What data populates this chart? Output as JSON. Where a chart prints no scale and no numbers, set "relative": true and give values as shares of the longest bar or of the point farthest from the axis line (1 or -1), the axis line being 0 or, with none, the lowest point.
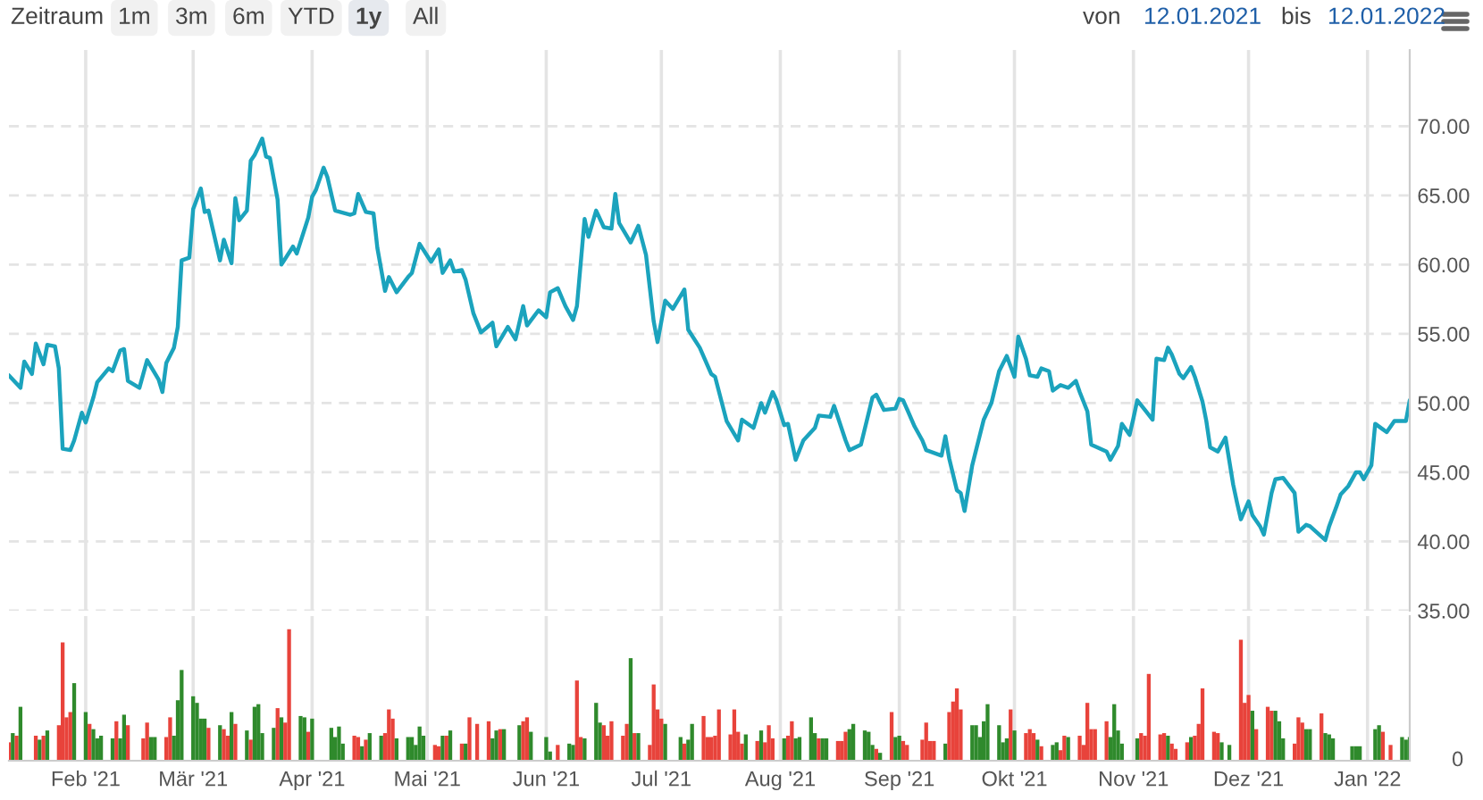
{
  "chart_data": [
    {
      "type": "line",
      "color": "#1ba3bd",
      "grid": true,
      "tick_labels": "y",
      "annotations": [
        "Zeitraum",
        "1m",
        "3m",
        "6m",
        "YTD",
        "1y",
        "All",
        "von",
        "12.01.2021",
        "bis",
        "12.01.2022"
      ],
      "xlim": [
        "2021-01-12",
        "2022-01-12"
      ],
      "xticks": [
        {
          "value": "2021-02-01",
          "label": null
        },
        {
          "value": "2021-03-01",
          "label": null
        },
        {
          "value": "2021-04-01",
          "label": null
        },
        {
          "value": "2021-05-01",
          "label": null
        },
        {
          "value": "2021-06-01",
          "label": null
        },
        {
          "value": "2021-07-01",
          "label": null
        },
        {
          "value": "2021-08-01",
          "label": null
        },
        {
          "value": "2021-09-01",
          "label": null
        },
        {
          "value": "2021-10-01",
          "label": null
        },
        {
          "value": "2021-11-01",
          "label": null
        },
        {
          "value": "2021-12-01",
          "label": null
        },
        {
          "value": "2022-01-01",
          "label": null
        }
      ],
      "ylim": [
        35,
        75.5
      ],
      "yticks": [
        {
          "value": 35,
          "label": "35.00"
        },
        {
          "value": 40,
          "label": "40.00"
        },
        {
          "value": 45,
          "label": "45.00"
        },
        {
          "value": 50,
          "label": "50.00"
        },
        {
          "value": 55,
          "label": "55.00"
        },
        {
          "value": 60,
          "label": "60.00"
        },
        {
          "value": 65,
          "label": "65.00"
        },
        {
          "value": 70,
          "label": "70.00"
        }
      ],
      "x": [
        "2021-01-12",
        "2021-01-15",
        "2021-01-16",
        "2021-01-18",
        "2021-01-19",
        "2021-01-21",
        "2021-01-22",
        "2021-01-24",
        "2021-01-25",
        "2021-01-26",
        "2021-01-28",
        "2021-01-29",
        "2021-01-31",
        "2021-02-01",
        "2021-02-03",
        "2021-02-04",
        "2021-02-07",
        "2021-02-08",
        "2021-02-10",
        "2021-02-11",
        "2021-02-12",
        "2021-02-15",
        "2021-02-17",
        "2021-02-20",
        "2021-02-21",
        "2021-02-22",
        "2021-02-24",
        "2021-02-25",
        "2021-02-26",
        "2021-02-28",
        "2021-03-01",
        "2021-03-03",
        "2021-03-04",
        "2021-03-05",
        "2021-03-08",
        "2021-03-09",
        "2021-03-11",
        "2021-03-12",
        "2021-03-13",
        "2021-03-15",
        "2021-03-16",
        "2021-03-17",
        "2021-03-19",
        "2021-03-20",
        "2021-03-21",
        "2021-03-23",
        "2021-03-24",
        "2021-03-27",
        "2021-03-28",
        "2021-03-31",
        "2021-04-01",
        "2021-04-02",
        "2021-04-04",
        "2021-04-05",
        "2021-04-07",
        "2021-04-11",
        "2021-04-12",
        "2021-04-13",
        "2021-04-15",
        "2021-04-17",
        "2021-04-18",
        "2021-04-20",
        "2021-04-21",
        "2021-04-23",
        "2021-04-26",
        "2021-04-27",
        "2021-04-29",
        "2021-05-02",
        "2021-05-04",
        "2021-05-05",
        "2021-05-07",
        "2021-05-08",
        "2021-05-10",
        "2021-05-11",
        "2021-05-13",
        "2021-05-15",
        "2021-05-18",
        "2021-05-19",
        "2021-05-22",
        "2021-05-24",
        "2021-05-26",
        "2021-05-27",
        "2021-05-30",
        "2021-06-01",
        "2021-06-02",
        "2021-06-04",
        "2021-06-06",
        "2021-06-08",
        "2021-06-09",
        "2021-06-11",
        "2021-06-12",
        "2021-06-14",
        "2021-06-16",
        "2021-06-18",
        "2021-06-19",
        "2021-06-20",
        "2021-06-23",
        "2021-06-25",
        "2021-06-27",
        "2021-06-29",
        "2021-06-30",
        "2021-07-02",
        "2021-07-04",
        "2021-07-07",
        "2021-07-08",
        "2021-07-11",
        "2021-07-14",
        "2021-07-15",
        "2021-07-18",
        "2021-07-21",
        "2021-07-22",
        "2021-07-25",
        "2021-07-27",
        "2021-07-28",
        "2021-07-30",
        "2021-07-31",
        "2021-08-02",
        "2021-08-03",
        "2021-08-05",
        "2021-08-07",
        "2021-08-10",
        "2021-08-11",
        "2021-08-14",
        "2021-08-15",
        "2021-08-18",
        "2021-08-19",
        "2021-08-22",
        "2021-08-25",
        "2021-08-26",
        "2021-08-28",
        "2021-08-31",
        "2021-09-01",
        "2021-09-02",
        "2021-09-05",
        "2021-09-07",
        "2021-09-08",
        "2021-09-12",
        "2021-09-13",
        "2021-09-14",
        "2021-09-16",
        "2021-09-17",
        "2021-09-18",
        "2021-09-20",
        "2021-09-21",
        "2021-09-23",
        "2021-09-25",
        "2021-09-27",
        "2021-09-29",
        "2021-10-01",
        "2021-10-02",
        "2021-10-04",
        "2021-10-05",
        "2021-10-07",
        "2021-10-08",
        "2021-10-10",
        "2021-10-11",
        "2021-10-13",
        "2021-10-15",
        "2021-10-17",
        "2021-10-18",
        "2021-10-20",
        "2021-10-21",
        "2021-10-25",
        "2021-10-26",
        "2021-10-28",
        "2021-10-29",
        "2021-10-31",
        "2021-11-01",
        "2021-11-02",
        "2021-11-04",
        "2021-11-06",
        "2021-11-07",
        "2021-11-09",
        "2021-11-10",
        "2021-11-11",
        "2021-11-13",
        "2021-11-14",
        "2021-11-16",
        "2021-11-17",
        "2021-11-19",
        "2021-11-20",
        "2021-11-21",
        "2021-11-23",
        "2021-11-25",
        "2021-11-27",
        "2021-11-28",
        "2021-11-29",
        "2021-12-01",
        "2021-12-02",
        "2021-12-04",
        "2021-12-05",
        "2021-12-07",
        "2021-12-08",
        "2021-12-10",
        "2021-12-13",
        "2021-12-14",
        "2021-12-16",
        "2021-12-17",
        "2021-12-19",
        "2021-12-21",
        "2021-12-22",
        "2021-12-24",
        "2021-12-25",
        "2021-12-27",
        "2021-12-29",
        "2021-12-30",
        "2021-12-31",
        "2022-01-02",
        "2022-01-03",
        "2022-01-05",
        "2022-01-06",
        "2022-01-08",
        "2022-01-11",
        "2022-01-12"
      ],
      "values": [
        52.0,
        51.1,
        53.0,
        52.1,
        54.3,
        52.8,
        54.2,
        54.1,
        52.5,
        46.7,
        46.6,
        47.3,
        49.3,
        48.6,
        50.4,
        51.5,
        52.5,
        52.3,
        53.8,
        53.9,
        51.6,
        51.1,
        53.1,
        51.7,
        50.8,
        52.9,
        54.0,
        55.5,
        60.3,
        60.5,
        64.0,
        65.5,
        63.8,
        63.9,
        60.3,
        61.8,
        60.1,
        64.8,
        63.2,
        63.9,
        67.5,
        67.9,
        69.1,
        67.8,
        67.7,
        64.7,
        60.0,
        61.3,
        60.8,
        63.4,
        64.9,
        65.4,
        67.0,
        66.3,
        63.9,
        63.6,
        63.7,
        65.1,
        63.8,
        63.7,
        61.2,
        58.1,
        59.1,
        58.0,
        59.1,
        59.4,
        61.5,
        60.2,
        61.1,
        59.4,
        60.3,
        59.5,
        59.6,
        58.9,
        56.5,
        55.1,
        55.8,
        54.1,
        55.5,
        54.6,
        57.0,
        55.6,
        56.7,
        56.2,
        58.0,
        58.3,
        57.0,
        56.0,
        57.0,
        63.3,
        62.0,
        63.9,
        62.7,
        62.6,
        65.1,
        63.0,
        61.6,
        62.8,
        60.7,
        55.9,
        54.4,
        57.4,
        56.8,
        58.2,
        55.3,
        54.0,
        52.1,
        51.9,
        48.7,
        47.3,
        48.8,
        48.2,
        50.0,
        49.3,
        50.8,
        50.2,
        48.4,
        48.5,
        45.9,
        47.3,
        48.2,
        49.1,
        49.0,
        49.8,
        47.3,
        46.6,
        47.0,
        50.4,
        50.6,
        49.5,
        49.6,
        50.3,
        50.2,
        48.3,
        47.3,
        46.6,
        46.2,
        47.6,
        46.0,
        43.7,
        43.5,
        42.2,
        45.5,
        46.6,
        48.8,
        50.0,
        52.3,
        53.4,
        51.9,
        54.8,
        53.2,
        52.0,
        51.9,
        52.5,
        52.3,
        50.9,
        51.3,
        51.1,
        51.6,
        50.8,
        49.4,
        47.0,
        46.5,
        45.9,
        46.9,
        48.5,
        47.7,
        48.9,
        50.2,
        49.5,
        48.8,
        53.2,
        53.1,
        54.0,
        53.5,
        52.1,
        51.8,
        52.6,
        51.9,
        50.1,
        48.7,
        46.8,
        46.5,
        47.5,
        44.1,
        42.8,
        41.6,
        42.9,
        41.9,
        41.1,
        40.5,
        43.5,
        44.5,
        44.6,
        43.5,
        40.7,
        41.2,
        41.1,
        40.6,
        40.1,
        41.1,
        42.6,
        43.4,
        44.0,
        45.0,
        45.0,
        44.5,
        45.5,
        48.5,
        48.1,
        47.9,
        48.7,
        48.7,
        50.2
      ]
    },
    {
      "type": "bar",
      "relative": true,
      "grid": "x",
      "tick_labels": "x",
      "annotations": [
        "0"
      ],
      "xlim": [
        "2021-01-12",
        "2022-01-12"
      ],
      "xticks": [
        {
          "value": "2021-02-01",
          "label": "Feb '21"
        },
        {
          "value": "2021-03-01",
          "label": "Mär '21"
        },
        {
          "value": "2021-04-01",
          "label": "Apr '21"
        },
        {
          "value": "2021-05-01",
          "label": "Mai '21"
        },
        {
          "value": "2021-06-01",
          "label": "Jun '21"
        },
        {
          "value": "2021-07-01",
          "label": "Jul '21"
        },
        {
          "value": "2021-08-01",
          "label": "Aug '21"
        },
        {
          "value": "2021-09-01",
          "label": "Sep '21"
        },
        {
          "value": "2021-10-01",
          "label": "Okt '21"
        },
        {
          "value": "2021-11-01",
          "label": "Nov '21"
        },
        {
          "value": "2021-12-01",
          "label": "Dez '21"
        },
        {
          "value": "2022-01-01",
          "label": "Jan '22"
        }
      ],
      "x": [
        "2021-01-12",
        "2021-01-13",
        "2021-01-14",
        "2021-01-15",
        "2021-01-19",
        "2021-01-20",
        "2021-01-21",
        "2021-01-22",
        "2021-01-25",
        "2021-01-26",
        "2021-01-27",
        "2021-01-28",
        "2021-01-29",
        "2021-02-01",
        "2021-02-02",
        "2021-02-03",
        "2021-02-04",
        "2021-02-05",
        "2021-02-08",
        "2021-02-09",
        "2021-02-10",
        "2021-02-11",
        "2021-02-12",
        "2021-02-16",
        "2021-02-17",
        "2021-02-18",
        "2021-02-19",
        "2021-02-22",
        "2021-02-23",
        "2021-02-24",
        "2021-02-25",
        "2021-02-26",
        "2021-03-01",
        "2021-03-02",
        "2021-03-03",
        "2021-03-04",
        "2021-03-05",
        "2021-03-08",
        "2021-03-09",
        "2021-03-10",
        "2021-03-11",
        "2021-03-12",
        "2021-03-15",
        "2021-03-16",
        "2021-03-17",
        "2021-03-18",
        "2021-03-19",
        "2021-03-22",
        "2021-03-23",
        "2021-03-24",
        "2021-03-25",
        "2021-03-26",
        "2021-03-29",
        "2021-03-30",
        "2021-03-31",
        "2021-04-01",
        "2021-04-06",
        "2021-04-07",
        "2021-04-08",
        "2021-04-09",
        "2021-04-12",
        "2021-04-13",
        "2021-04-14",
        "2021-04-15",
        "2021-04-16",
        "2021-04-19",
        "2021-04-20",
        "2021-04-21",
        "2021-04-22",
        "2021-04-23",
        "2021-04-26",
        "2021-04-27",
        "2021-04-28",
        "2021-04-29",
        "2021-04-30",
        "2021-05-03",
        "2021-05-04",
        "2021-05-05",
        "2021-05-06",
        "2021-05-07",
        "2021-05-10",
        "2021-05-11",
        "2021-05-12",
        "2021-05-14",
        "2021-05-17",
        "2021-05-18",
        "2021-05-19",
        "2021-05-20",
        "2021-05-21",
        "2021-05-25",
        "2021-05-26",
        "2021-05-27",
        "2021-05-28",
        "2021-06-01",
        "2021-06-02",
        "2021-06-04",
        "2021-06-07",
        "2021-06-08",
        "2021-06-09",
        "2021-06-10",
        "2021-06-11",
        "2021-06-14",
        "2021-06-15",
        "2021-06-16",
        "2021-06-17",
        "2021-06-18",
        "2021-06-21",
        "2021-06-22",
        "2021-06-23",
        "2021-06-24",
        "2021-06-25",
        "2021-06-28",
        "2021-06-29",
        "2021-06-30",
        "2021-07-01",
        "2021-07-02",
        "2021-07-06",
        "2021-07-07",
        "2021-07-08",
        "2021-07-09",
        "2021-07-12",
        "2021-07-13",
        "2021-07-14",
        "2021-07-15",
        "2021-07-16",
        "2021-07-19",
        "2021-07-20",
        "2021-07-21",
        "2021-07-22",
        "2021-07-23",
        "2021-07-26",
        "2021-07-27",
        "2021-07-28",
        "2021-07-29",
        "2021-07-30",
        "2021-08-02",
        "2021-08-03",
        "2021-08-04",
        "2021-08-05",
        "2021-08-06",
        "2021-08-09",
        "2021-08-10",
        "2021-08-11",
        "2021-08-12",
        "2021-08-13",
        "2021-08-16",
        "2021-08-17",
        "2021-08-18",
        "2021-08-19",
        "2021-08-20",
        "2021-08-23",
        "2021-08-24",
        "2021-08-25",
        "2021-08-26",
        "2021-08-27",
        "2021-08-30",
        "2021-08-31",
        "2021-09-01",
        "2021-09-02",
        "2021-09-03",
        "2021-09-07",
        "2021-09-08",
        "2021-09-09",
        "2021-09-10",
        "2021-09-13",
        "2021-09-14",
        "2021-09-15",
        "2021-09-16",
        "2021-09-17",
        "2021-09-20",
        "2021-09-21",
        "2021-09-22",
        "2021-09-23",
        "2021-09-24",
        "2021-09-27",
        "2021-09-28",
        "2021-09-29",
        "2021-09-30",
        "2021-10-01",
        "2021-10-04",
        "2021-10-05",
        "2021-10-06",
        "2021-10-07",
        "2021-10-08",
        "2021-10-11",
        "2021-10-12",
        "2021-10-13",
        "2021-10-14",
        "2021-10-15",
        "2021-10-18",
        "2021-10-19",
        "2021-10-20",
        "2021-10-21",
        "2021-10-22",
        "2021-10-25",
        "2021-10-26",
        "2021-10-27",
        "2021-10-28",
        "2021-10-29",
        "2021-11-02",
        "2021-11-03",
        "2021-11-04",
        "2021-11-05",
        "2021-11-08",
        "2021-11-09",
        "2021-11-10",
        "2021-11-11",
        "2021-11-12",
        "2021-11-15",
        "2021-11-16",
        "2021-11-17",
        "2021-11-18",
        "2021-11-19",
        "2021-11-22",
        "2021-11-23",
        "2021-11-24",
        "2021-11-26",
        "2021-11-29",
        "2021-11-30",
        "2021-12-01",
        "2021-12-02",
        "2021-12-03",
        "2021-12-06",
        "2021-12-07",
        "2021-12-08",
        "2021-12-09",
        "2021-12-10",
        "2021-12-13",
        "2021-12-14",
        "2021-12-15",
        "2021-12-16",
        "2021-12-17",
        "2021-12-20",
        "2021-12-21",
        "2021-12-22",
        "2021-12-23",
        "2021-12-28",
        "2021-12-29",
        "2021-12-30",
        "2022-01-03",
        "2022-01-04",
        "2022-01-05",
        "2022-01-07",
        "2022-01-10",
        "2022-01-11",
        "2022-01-12"
      ],
      "values": [
        0.14,
        0.21,
        0.19,
        0.41,
        0.19,
        0.16,
        0.19,
        0.23,
        0.27,
        0.9,
        0.33,
        0.37,
        0.59,
        0.37,
        0.28,
        0.24,
        0.17,
        0.19,
        0.17,
        0.3,
        0.17,
        0.35,
        0.27,
        0.17,
        0.29,
        0.18,
        0.18,
        0.18,
        0.33,
        0.19,
        0.46,
        0.69,
        0.49,
        0.44,
        0.32,
        0.32,
        0.25,
        0.27,
        0.24,
        0.19,
        0.37,
        0.28,
        0.23,
        0.16,
        0.41,
        0.43,
        0.21,
        0.25,
        0.4,
        0.33,
        0.29,
        1,
        0.34,
        0.33,
        0.22,
        0.32,
        0.25,
        0.18,
        0.26,
        0.13,
        0.19,
        0.18,
        0.11,
        0.16,
        0.21,
        0.19,
        0.21,
        0.39,
        0.32,
        0.17,
        0.18,
        0.18,
        0.12,
        0.26,
        0.19,
        0.12,
        0.11,
        0.19,
        0.19,
        0.23,
        0.13,
        0.13,
        0.33,
        0.28,
        0.3,
        0.17,
        0.23,
        0.24,
        0.24,
        0.27,
        0.3,
        0.33,
        0.22,
        0.18,
        0.07,
        0.12,
        0.13,
        0.12,
        0.61,
        0.18,
        0.17,
        0.44,
        0.29,
        0.27,
        0.19,
        0.3,
        0.19,
        0.28,
        0.78,
        0.21,
        0.21,
        0.12,
        0.58,
        0.39,
        0.32,
        0.28,
        0.18,
        0.13,
        0.16,
        0.28,
        0.34,
        0.18,
        0.18,
        0.19,
        0.39,
        0.2,
        0.39,
        0.22,
        0.13,
        0.2,
        0.15,
        0.23,
        0.14,
        0.27,
        0.17,
        0.17,
        0.19,
        0.3,
        0.17,
        0.18,
        0.33,
        0.21,
        0.17,
        0.17,
        0.17,
        0.15,
        0.15,
        0.22,
        0.24,
        0.28,
        0.23,
        0.22,
        0.12,
        0.09,
        0.06,
        0.37,
        0.18,
        0.19,
        0.15,
        0.12,
        0.16,
        0.29,
        0.15,
        0.15,
        0.13,
        0.37,
        0.45,
        0.55,
        0.39,
        0.27,
        0.27,
        0.18,
        0.3,
        0.43,
        0.27,
        0.14,
        0.17,
        0.39,
        0.23,
        0.21,
        0.24,
        0.21,
        0.16,
        0.11,
        0.12,
        0.14,
        0.08,
        0.19,
        0.18,
        0.19,
        0.12,
        0.44,
        0.24,
        0.24,
        0.3,
        0.18,
        0.43,
        0.23,
        0.13,
        0.17,
        0.21,
        0.19,
        0.66,
        0.2,
        0.21,
        0.19,
        0.13,
        0.09,
        0.14,
        0.18,
        0.19,
        0.28,
        0.55,
        0.22,
        0.21,
        0.14,
        0.12,
        0.92,
        0.44,
        0.5,
        0.38,
        0.24,
        0.41,
        0.38,
        0.38,
        0.3,
        0.17,
        0.13,
        0.33,
        0.29,
        0.24,
        0.24,
        0.36,
        0.21,
        0.2,
        0.17,
        0.11,
        0.11,
        0.11,
        0.24,
        0.27,
        0.22,
        0.12,
        0.18,
        0.16,
        0.18
      ],
      "colors": [
        "#e8433b",
        "#2f8a2c",
        "#e8433b",
        "#2f8a2c",
        "#e8433b",
        "#2f8a2c",
        "#e8433b",
        "#2f8a2c",
        "#e8433b",
        "#e8433b",
        "#e8433b",
        "#e8433b",
        "#2f8a2c",
        "#2f8a2c",
        "#e8433b",
        "#2f8a2c",
        "#2f8a2c",
        "#2f8a2c",
        "#2f8a2c",
        "#e8433b",
        "#2f8a2c",
        "#2f8a2c",
        "#e8433b",
        "#e8433b",
        "#e8433b",
        "#2f8a2c",
        "#2f8a2c",
        "#e8433b",
        "#e8433b",
        "#2f8a2c",
        "#2f8a2c",
        "#2f8a2c",
        "#2f8a2c",
        "#2f8a2c",
        "#2f8a2c",
        "#2f8a2c",
        "#e8433b",
        "#2f8a2c",
        "#e8433b",
        "#e8433b",
        "#2f8a2c",
        "#e8433b",
        "#2f8a2c",
        "#e8433b",
        "#2f8a2c",
        "#2f8a2c",
        "#2f8a2c",
        "#2f8a2c",
        "#e8433b",
        "#2f8a2c",
        "#e8433b",
        "#e8433b",
        "#2f8a2c",
        "#2f8a2c",
        "#e8433b",
        "#2f8a2c",
        "#2f8a2c",
        "#2f8a2c",
        "#2f8a2c",
        "#2f8a2c",
        "#e8433b",
        "#e8433b",
        "#2f8a2c",
        "#e8433b",
        "#2f8a2c",
        "#2f8a2c",
        "#e8433b",
        "#e8433b",
        "#e8433b",
        "#2f8a2c",
        "#2f8a2c",
        "#2f8a2c",
        "#2f8a2c",
        "#2f8a2c",
        "#2f8a2c",
        "#e8433b",
        "#e8433b",
        "#2f8a2c",
        "#e8433b",
        "#2f8a2c",
        "#e8433b",
        "#2f8a2c",
        "#e8433b",
        "#e8433b",
        "#e8433b",
        "#2f8a2c",
        "#2f8a2c",
        "#e8433b",
        "#2f8a2c",
        "#2f8a2c",
        "#e8433b",
        "#e8433b",
        "#2f8a2c",
        "#2f8a2c",
        "#2f8a2c",
        "#e8433b",
        "#2f8a2c",
        "#2f8a2c",
        "#e8433b",
        "#e8433b",
        "#2f8a2c",
        "#2f8a2c",
        "#2f8a2c",
        "#e8433b",
        "#e8433b",
        "#e8433b",
        "#e8433b",
        "#e8433b",
        "#2f8a2c",
        "#e8433b",
        "#2f8a2c",
        "#e8433b",
        "#e8433b",
        "#e8433b",
        "#e8433b",
        "#2f8a2c",
        "#2f8a2c",
        "#e8433b",
        "#2f8a2c",
        "#2f8a2c",
        "#e8433b",
        "#e8433b",
        "#e8433b",
        "#e8433b",
        "#e8433b",
        "#e8433b",
        "#e8433b",
        "#e8433b",
        "#e8433b",
        "#2f8a2c",
        "#e8433b",
        "#2f8a2c",
        "#e8433b",
        "#e8433b",
        "#e8433b",
        "#2f8a2c",
        "#e8433b",
        "#e8433b",
        "#2f8a2c",
        "#2f8a2c",
        "#2f8a2c",
        "#2f8a2c",
        "#e8433b",
        "#2f8a2c",
        "#2f8a2c",
        "#e8433b",
        "#e8433b",
        "#e8433b",
        "#2f8a2c",
        "#2f8a2c",
        "#2f8a2c",
        "#2f8a2c",
        "#2f8a2c",
        "#e8433b",
        "#2f8a2c",
        "#e8433b",
        "#2f8a2c",
        "#2f8a2c",
        "#e8433b",
        "#e8433b",
        "#e8433b",
        "#e8433b",
        "#e8433b",
        "#e8433b",
        "#2f8a2c",
        "#e8433b",
        "#e8433b",
        "#e8433b",
        "#e8433b",
        "#2f8a2c",
        "#2f8a2c",
        "#2f8a2c",
        "#2f8a2c",
        "#2f8a2c",
        "#2f8a2c",
        "#2f8a2c",
        "#2f8a2c",
        "#e8433b",
        "#2f8a2c",
        "#e8433b",
        "#e8433b",
        "#e8433b",
        "#2f8a2c",
        "#e8433b",
        "#2f8a2c",
        "#2f8a2c",
        "#e8433b",
        "#e8433b",
        "#2f8a2c",
        "#e8433b",
        "#e8433b",
        "#e8433b",
        "#e8433b",
        "#e8433b",
        "#e8433b",
        "#2f8a2c",
        "#2f8a2c",
        "#2f8a2c",
        "#2f8a2c",
        "#2f8a2c",
        "#e8433b",
        "#e8433b",
        "#e8433b",
        "#e8433b",
        "#e8433b",
        "#2f8a2c",
        "#e8433b",
        "#e8433b",
        "#e8433b",
        "#2f8a2c",
        "#e8433b",
        "#e8433b",
        "#e8433b",
        "#e8433b",
        "#e8433b",
        "#2f8a2c",
        "#2f8a2c",
        "#e8433b",
        "#e8433b",
        "#e8433b",
        "#2f8a2c",
        "#e8433b",
        "#e8433b",
        "#e8433b",
        "#2f8a2c",
        "#2f8a2c",
        "#2f8a2c",
        "#e8433b",
        "#e8433b",
        "#e8433b",
        "#2f8a2c",
        "#2f8a2c",
        "#e8433b",
        "#2f8a2c",
        "#2f8a2c",
        "#2f8a2c",
        "#2f8a2c",
        "#2f8a2c",
        "#2f8a2c",
        "#2f8a2c",
        "#2f8a2c",
        "#e8433b",
        "#e8433b",
        "#2f8a2c",
        "#2f8a2c",
        "#2f8a2c"
      ]
    }
  ]
}
